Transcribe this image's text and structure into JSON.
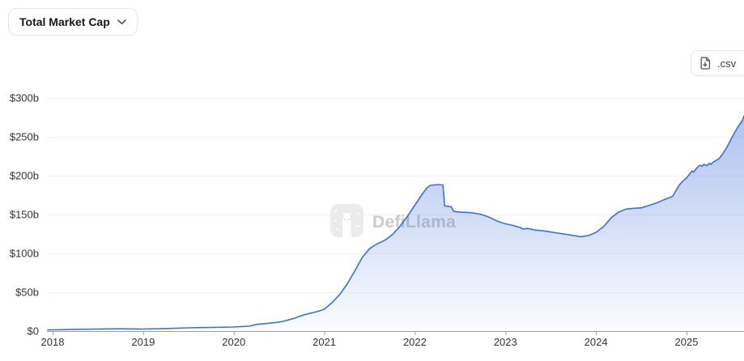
{
  "header": {
    "dropdown_label": "Total Market Cap",
    "csv_label": ".csv"
  },
  "watermark": {
    "text": "DefiLlama"
  },
  "chart_data": {
    "type": "area",
    "title": "Total Market Cap",
    "unit": "USD billions",
    "legend": false,
    "grid": "horizontal-only",
    "x_axis": {
      "min": 2017.94,
      "max": 2025.635,
      "ticks": [
        {
          "label": "2018",
          "value": 2018
        },
        {
          "label": "2019",
          "value": 2019
        },
        {
          "label": "2020",
          "value": 2020
        },
        {
          "label": "2021",
          "value": 2021
        },
        {
          "label": "2022",
          "value": 2022
        },
        {
          "label": "2023",
          "value": 2023
        },
        {
          "label": "2024",
          "value": 2024
        },
        {
          "label": "2025",
          "value": 2025
        }
      ]
    },
    "y_axis": {
      "min": 0,
      "max": 300,
      "ticks": [
        {
          "label": "$0",
          "value": 0
        },
        {
          "label": "$50b",
          "value": 50
        },
        {
          "label": "$100b",
          "value": 100
        },
        {
          "label": "$150b",
          "value": 150
        },
        {
          "label": "$200b",
          "value": 200
        },
        {
          "label": "$250b",
          "value": 250
        },
        {
          "label": "$300b",
          "value": 300
        }
      ]
    },
    "colors": {
      "line": "#3e6fd9",
      "area_top": "rgba(62,111,217,0.42)",
      "area_bottom": "rgba(62,111,217,0.02)",
      "gridline": "#f1f2f4",
      "axis": "#9f9f9f"
    },
    "series": [
      {
        "name": "Total Market Cap ($b)",
        "points": [
          [
            2017.94,
            1.5
          ],
          [
            2018.0,
            1.6
          ],
          [
            2018.25,
            2.2
          ],
          [
            2018.5,
            2.6
          ],
          [
            2018.75,
            2.9
          ],
          [
            2018.92,
            2.7
          ],
          [
            2019.0,
            2.6
          ],
          [
            2019.25,
            3.2
          ],
          [
            2019.5,
            4.2
          ],
          [
            2019.75,
            4.7
          ],
          [
            2020.0,
            5.2
          ],
          [
            2020.17,
            6.3
          ],
          [
            2020.25,
            8.5
          ],
          [
            2020.42,
            10.5
          ],
          [
            2020.5,
            11.5
          ],
          [
            2020.58,
            13.5
          ],
          [
            2020.67,
            16.5
          ],
          [
            2020.75,
            20
          ],
          [
            2020.83,
            22.5
          ],
          [
            2020.92,
            25
          ],
          [
            2021.0,
            28
          ],
          [
            2021.08,
            36
          ],
          [
            2021.17,
            47
          ],
          [
            2021.25,
            60
          ],
          [
            2021.33,
            76
          ],
          [
            2021.42,
            95
          ],
          [
            2021.5,
            106
          ],
          [
            2021.58,
            112
          ],
          [
            2021.67,
            117
          ],
          [
            2021.75,
            124
          ],
          [
            2021.83,
            134
          ],
          [
            2021.92,
            148
          ],
          [
            2022.0,
            162
          ],
          [
            2022.08,
            176
          ],
          [
            2022.13,
            184
          ],
          [
            2022.17,
            187.5
          ],
          [
            2022.25,
            188.5
          ],
          [
            2022.31,
            188
          ],
          [
            2022.33,
            161
          ],
          [
            2022.4,
            160
          ],
          [
            2022.43,
            154
          ],
          [
            2022.5,
            153
          ],
          [
            2022.6,
            152.5
          ],
          [
            2022.7,
            151
          ],
          [
            2022.75,
            149.5
          ],
          [
            2022.83,
            146
          ],
          [
            2022.92,
            141
          ],
          [
            2023.0,
            138
          ],
          [
            2023.08,
            136
          ],
          [
            2023.17,
            133
          ],
          [
            2023.19,
            131.5
          ],
          [
            2023.25,
            132
          ],
          [
            2023.33,
            130
          ],
          [
            2023.42,
            129
          ],
          [
            2023.5,
            127.5
          ],
          [
            2023.58,
            126
          ],
          [
            2023.67,
            124.5
          ],
          [
            2023.75,
            123
          ],
          [
            2023.83,
            121.5
          ],
          [
            2023.92,
            123
          ],
          [
            2024.0,
            127
          ],
          [
            2024.08,
            134
          ],
          [
            2024.17,
            146
          ],
          [
            2024.25,
            153
          ],
          [
            2024.33,
            157
          ],
          [
            2024.42,
            158
          ],
          [
            2024.5,
            158.5
          ],
          [
            2024.58,
            161.5
          ],
          [
            2024.67,
            165
          ],
          [
            2024.75,
            169
          ],
          [
            2024.83,
            172.5
          ],
          [
            2024.85,
            174
          ],
          [
            2024.88,
            180
          ],
          [
            2024.92,
            188
          ],
          [
            2024.96,
            193
          ],
          [
            2025.0,
            197
          ],
          [
            2025.04,
            203
          ],
          [
            2025.06,
            206
          ],
          [
            2025.08,
            204.5
          ],
          [
            2025.1,
            208
          ],
          [
            2025.13,
            212
          ],
          [
            2025.15,
            213.5
          ],
          [
            2025.17,
            212
          ],
          [
            2025.19,
            214.5
          ],
          [
            2025.23,
            213
          ],
          [
            2025.25,
            216
          ],
          [
            2025.27,
            214.5
          ],
          [
            2025.29,
            217
          ],
          [
            2025.33,
            220
          ],
          [
            2025.36,
            222
          ],
          [
            2025.38,
            225
          ],
          [
            2025.4,
            228
          ],
          [
            2025.42,
            232
          ],
          [
            2025.44,
            235
          ],
          [
            2025.46,
            240
          ],
          [
            2025.48,
            244
          ],
          [
            2025.5,
            249
          ],
          [
            2025.52,
            253
          ],
          [
            2025.54,
            257
          ],
          [
            2025.56,
            261
          ],
          [
            2025.58,
            265
          ],
          [
            2025.6,
            268
          ],
          [
            2025.62,
            272
          ],
          [
            2025.635,
            277
          ]
        ]
      }
    ]
  }
}
